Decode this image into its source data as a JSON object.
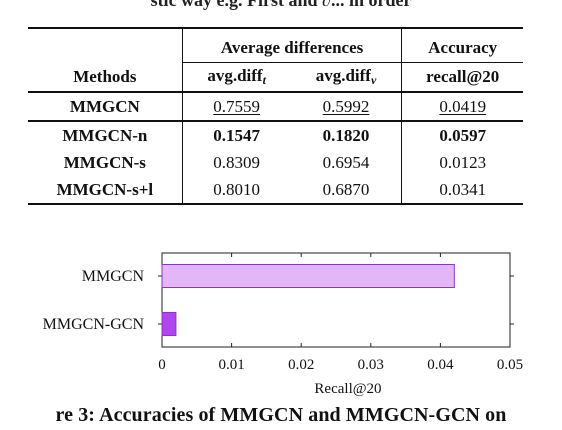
{
  "top_fragment": "stic way e.g. First and ∂... in order",
  "table": {
    "header_group_1": "Average differences",
    "header_group_2": "Accuracy",
    "col_methods": "Methods",
    "col_t": "avg.diff",
    "col_t_sub": "t",
    "col_v": "avg.diff",
    "col_v_sub": "v",
    "col_recall": "recall@20",
    "rows": [
      {
        "method": "MMGCN",
        "t": "0.7559",
        "v": "0.5992",
        "r": "0.0419"
      },
      {
        "method": "MMGCN-n",
        "t": "0.1547",
        "v": "0.1820",
        "r": "0.0597"
      },
      {
        "method": "MMGCN-s",
        "t": "0.8309",
        "v": "0.6954",
        "r": "0.0123"
      },
      {
        "method": "MMGCN-s+l",
        "t": "0.8010",
        "v": "0.6870",
        "r": "0.0341"
      }
    ]
  },
  "chart_data": {
    "type": "bar",
    "orientation": "horizontal",
    "categories": [
      "MMGCN",
      "MMGCN-GCN"
    ],
    "values": [
      0.042,
      0.002
    ],
    "bar_colors": [
      "#e3b6f7",
      "#b146f0"
    ],
    "xlabel": "Recall@20",
    "ylabel": "",
    "xlim": [
      0,
      0.05
    ],
    "x_ticks": [
      "0",
      "0.01",
      "0.02",
      "0.03",
      "0.04",
      "0.05"
    ],
    "grid": false
  },
  "caption": "re 3: Accuracies of MMGCN and MMGCN-GCN on"
}
